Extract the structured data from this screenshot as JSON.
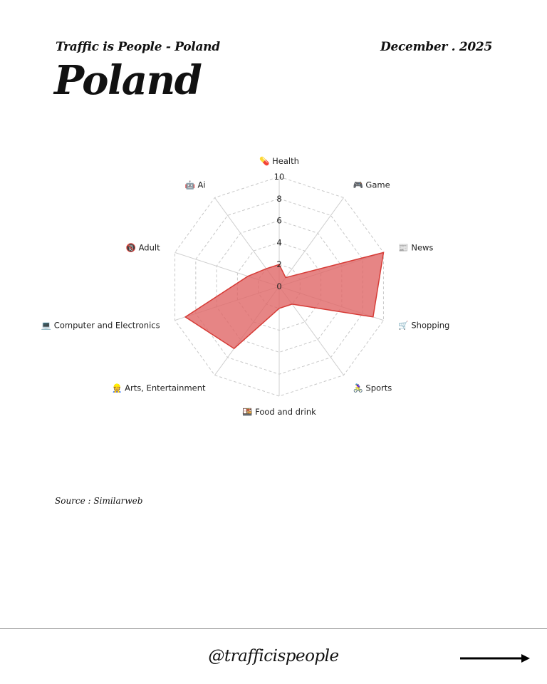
{
  "header": {
    "subtitle": "Traffic is People - Poland",
    "date": "December . 2025",
    "title": "Poland"
  },
  "chart_data": {
    "type": "radar",
    "title": "Poland",
    "categories": [
      "Health",
      "Game",
      "News",
      "Shopping",
      "Sports",
      "Food and drink",
      "Arts, Entertainment",
      "Computer and Electronics",
      "Adult",
      "Ai"
    ],
    "category_icons": [
      "💊",
      "🎮",
      "📰",
      "🛒",
      "🚴‍♀️",
      "🍱",
      "👷",
      "💻",
      "🔞",
      "🤖"
    ],
    "series": [
      {
        "name": "Poland",
        "values": [
          2,
          1,
          10,
          9,
          2,
          2,
          7,
          9,
          3,
          2
        ],
        "fill": "#e06666",
        "stroke": "#d63b36"
      }
    ],
    "rlim": [
      0,
      10
    ],
    "ticks": [
      "0",
      "2",
      "4",
      "6",
      "8",
      "10"
    ],
    "grid": true
  },
  "source": "Source : Similarweb",
  "footer": {
    "handle": "@trafficispeople"
  }
}
